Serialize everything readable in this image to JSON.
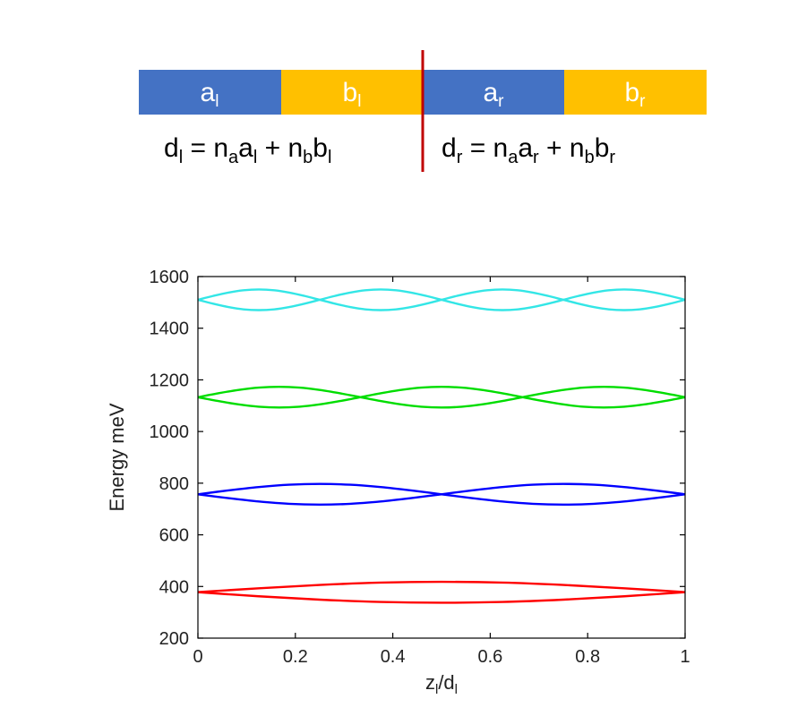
{
  "diagram": {
    "colors": {
      "a": "#4472c4",
      "b": "#ffc000",
      "interface": "#c00000"
    },
    "segments": [
      {
        "base": "a",
        "sub": "l",
        "material": "a"
      },
      {
        "base": "b",
        "sub": "l",
        "material": "b"
      },
      {
        "base": "a",
        "sub": "r",
        "material": "a"
      },
      {
        "base": "b",
        "sub": "r",
        "material": "b"
      }
    ],
    "equation_left": [
      {
        "t": "d"
      },
      {
        "t": "l",
        "sub": true
      },
      {
        "t": " = n"
      },
      {
        "t": "a",
        "sub": true
      },
      {
        "t": "a"
      },
      {
        "t": "l",
        "sub": true
      },
      {
        "t": " + n"
      },
      {
        "t": "b",
        "sub": true
      },
      {
        "t": "b"
      },
      {
        "t": "l",
        "sub": true
      }
    ],
    "equation_right": [
      {
        "t": "d"
      },
      {
        "t": "r",
        "sub": true
      },
      {
        "t": " = n"
      },
      {
        "t": "a",
        "sub": true
      },
      {
        "t": "a"
      },
      {
        "t": "r",
        "sub": true
      },
      {
        "t": " + n"
      },
      {
        "t": "b",
        "sub": true
      },
      {
        "t": "b"
      },
      {
        "t": "r",
        "sub": true
      }
    ]
  },
  "chart_data": {
    "type": "line",
    "xlabel": "z",
    "xlabel_sub": "l",
    "xlabel_rest": "/d",
    "xlabel_sub2": "l",
    "ylabel": "Energy meV",
    "xlim": [
      0,
      1
    ],
    "ylim": [
      200,
      1600
    ],
    "xticks": [
      0,
      0.2,
      0.4,
      0.6,
      0.8,
      1
    ],
    "xtick_labels": [
      "0",
      "0.2",
      "0.4",
      "0.6",
      "0.8",
      "1"
    ],
    "yticks": [
      200,
      400,
      600,
      800,
      1000,
      1200,
      1400,
      1600
    ],
    "ytick_labels": [
      "200",
      "400",
      "600",
      "800",
      "1000",
      "1200",
      "1400",
      "1600"
    ],
    "grid": false,
    "series": [
      {
        "color": "#ff0000",
        "x": [
          0,
          0.125,
          0.25,
          0.375,
          0.5,
          0.625,
          0.75,
          0.875,
          1
        ],
        "values": [
          378,
          393,
          406,
          415,
          418,
          415,
          406,
          393,
          378
        ]
      },
      {
        "color": "#ff0000",
        "x": [
          0,
          0.125,
          0.25,
          0.375,
          0.5,
          0.625,
          0.75,
          0.875,
          1
        ],
        "values": [
          378,
          362,
          349,
          340,
          337,
          340,
          349,
          362,
          378
        ]
      },
      {
        "color": "#0000ff",
        "x": [
          0,
          0.0625,
          0.125,
          0.1875,
          0.25,
          0.3125,
          0.375,
          0.4375,
          0.5,
          0.5625,
          0.625,
          0.6875,
          0.75,
          0.8125,
          0.875,
          0.9375,
          1
        ],
        "values": [
          757,
          772,
          785,
          794,
          797,
          794,
          785,
          772,
          757,
          742,
          729,
          720,
          717,
          720,
          729,
          742,
          757
        ]
      },
      {
        "color": "#0000ff",
        "x": [
          0,
          0.0625,
          0.125,
          0.1875,
          0.25,
          0.3125,
          0.375,
          0.4375,
          0.5,
          0.5625,
          0.625,
          0.6875,
          0.75,
          0.8125,
          0.875,
          0.9375,
          1
        ],
        "values": [
          757,
          742,
          729,
          720,
          717,
          720,
          729,
          742,
          757,
          772,
          785,
          794,
          797,
          794,
          785,
          772,
          757
        ]
      },
      {
        "color": "#00dd00",
        "x": [
          0,
          0.0417,
          0.0833,
          0.125,
          0.1667,
          0.2083,
          0.25,
          0.2917,
          0.3333,
          0.375,
          0.4167,
          0.4583,
          0.5,
          0.5417,
          0.5833,
          0.625,
          0.6667,
          0.7083,
          0.75,
          0.7917,
          0.8333,
          0.875,
          0.9167,
          0.9583,
          1
        ],
        "values": [
          1133,
          1148,
          1161,
          1170,
          1173,
          1170,
          1161,
          1148,
          1133,
          1118,
          1105,
          1096,
          1093,
          1096,
          1105,
          1118,
          1133,
          1148,
          1161,
          1170,
          1173,
          1170,
          1161,
          1148,
          1133
        ]
      },
      {
        "color": "#00dd00",
        "x": [
          0,
          0.0417,
          0.0833,
          0.125,
          0.1667,
          0.2083,
          0.25,
          0.2917,
          0.3333,
          0.375,
          0.4167,
          0.4583,
          0.5,
          0.5417,
          0.5833,
          0.625,
          0.6667,
          0.7083,
          0.75,
          0.7917,
          0.8333,
          0.875,
          0.9167,
          0.9583,
          1
        ],
        "values": [
          1133,
          1118,
          1105,
          1096,
          1093,
          1096,
          1105,
          1118,
          1133,
          1148,
          1161,
          1170,
          1173,
          1170,
          1161,
          1148,
          1133,
          1118,
          1105,
          1096,
          1093,
          1096,
          1105,
          1118,
          1133
        ]
      },
      {
        "color": "#33e6e6",
        "x": [
          0,
          0.0313,
          0.0625,
          0.0938,
          0.125,
          0.1563,
          0.1875,
          0.2188,
          0.25,
          0.2813,
          0.3125,
          0.3438,
          0.375,
          0.4063,
          0.4375,
          0.4688,
          0.5,
          0.5313,
          0.5625,
          0.5938,
          0.625,
          0.6563,
          0.6875,
          0.7188,
          0.75,
          0.7813,
          0.8125,
          0.8438,
          0.875,
          0.9063,
          0.9375,
          0.9688,
          1
        ],
        "values": [
          1510,
          1525,
          1538,
          1547,
          1550,
          1547,
          1538,
          1525,
          1510,
          1495,
          1482,
          1473,
          1470,
          1473,
          1482,
          1495,
          1510,
          1525,
          1538,
          1547,
          1550,
          1547,
          1538,
          1525,
          1510,
          1495,
          1482,
          1473,
          1470,
          1473,
          1482,
          1495,
          1510
        ]
      },
      {
        "color": "#33e6e6",
        "x": [
          0,
          0.0313,
          0.0625,
          0.0938,
          0.125,
          0.1563,
          0.1875,
          0.2188,
          0.25,
          0.2813,
          0.3125,
          0.3438,
          0.375,
          0.4063,
          0.4375,
          0.4688,
          0.5,
          0.5313,
          0.5625,
          0.5938,
          0.625,
          0.6563,
          0.6875,
          0.7188,
          0.75,
          0.7813,
          0.8125,
          0.8438,
          0.875,
          0.9063,
          0.9375,
          0.9688,
          1
        ],
        "values": [
          1510,
          1495,
          1482,
          1473,
          1470,
          1473,
          1482,
          1495,
          1510,
          1525,
          1538,
          1547,
          1550,
          1547,
          1538,
          1525,
          1510,
          1495,
          1482,
          1473,
          1470,
          1473,
          1482,
          1495,
          1510,
          1525,
          1538,
          1547,
          1550,
          1547,
          1538,
          1525,
          1510
        ]
      }
    ]
  }
}
